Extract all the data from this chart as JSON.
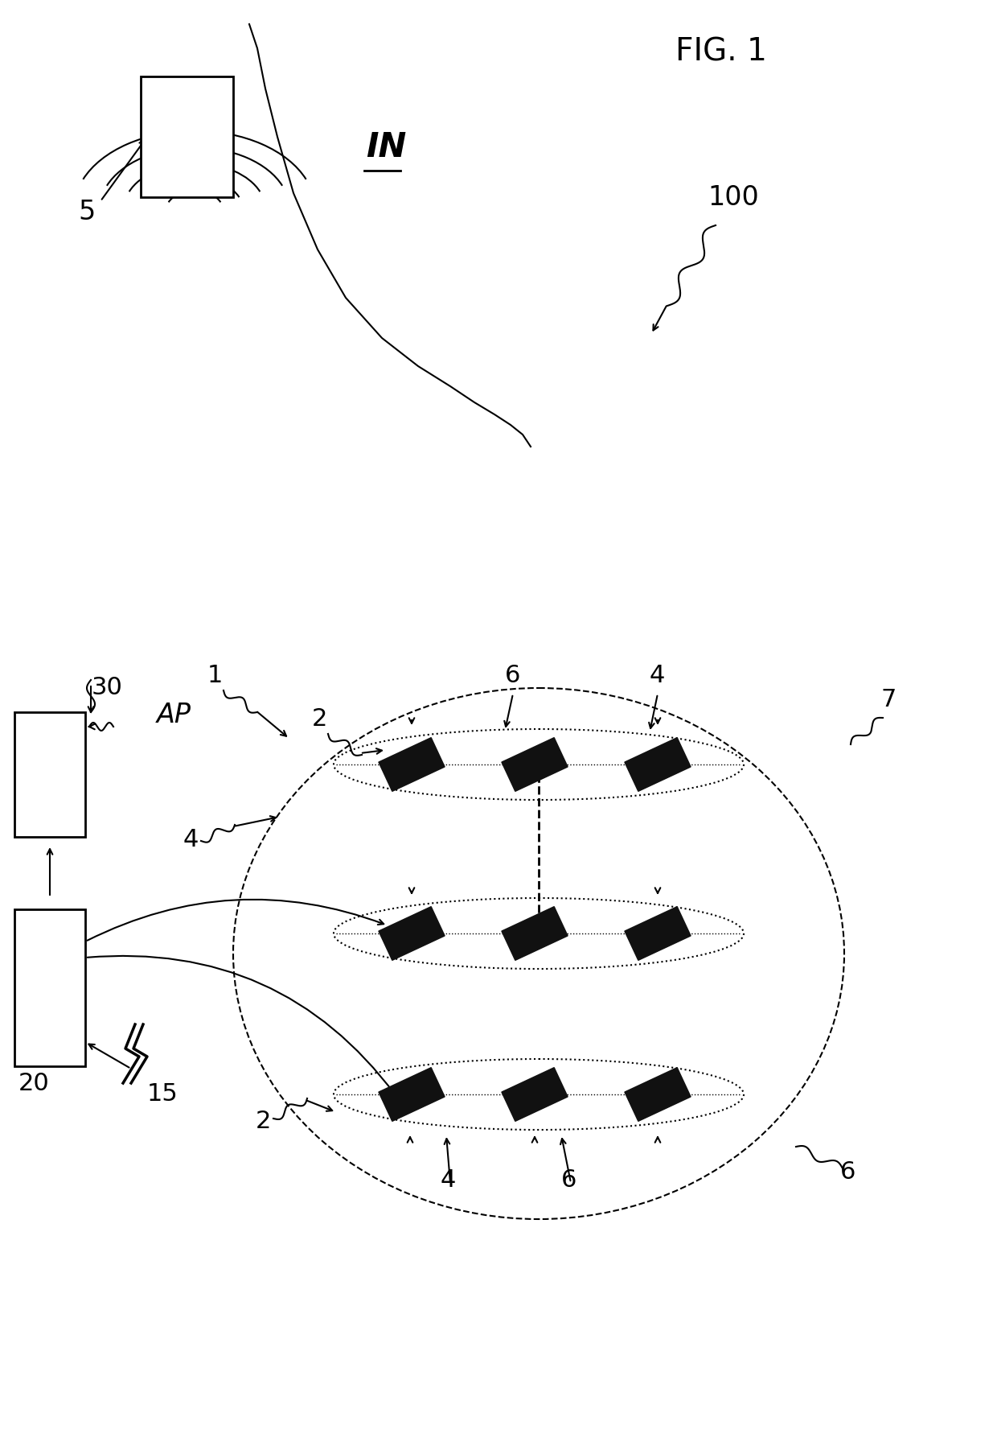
{
  "fig_label": "FIG. 1",
  "system_label": "100",
  "bg_color": "#ffffff",
  "line_color": "#000000",
  "sensor_color": "#111111",
  "labels": {
    "IN": "IN",
    "label_5": "5",
    "label_1": "1",
    "label_2": "2",
    "label_4": "4",
    "label_6": "6",
    "label_7": "7",
    "AP": "AP",
    "label_15": "15",
    "label_20": "20",
    "label_30": "30",
    "label_100": "100"
  }
}
